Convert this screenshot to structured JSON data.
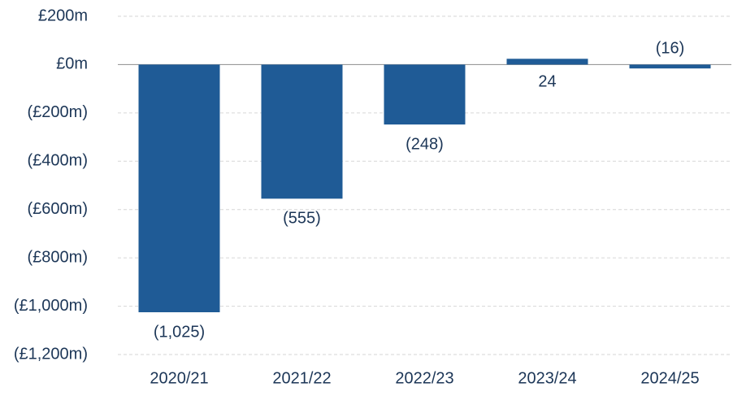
{
  "chart_data": {
    "type": "bar",
    "categories": [
      "2020/21",
      "2021/22",
      "2022/23",
      "2023/24",
      "2024/25"
    ],
    "values": [
      -1025,
      -555,
      -248,
      24,
      -16
    ],
    "value_labels": [
      "(1,025)",
      "(555)",
      "(248)",
      "24",
      "(16)"
    ],
    "color": "#1f5b96",
    "ylim": [
      -1200,
      200
    ],
    "yticks": [
      {
        "value": 200,
        "label": "£200m"
      },
      {
        "value": 0,
        "label": "£0m"
      },
      {
        "value": -200,
        "label": "(£200m)"
      },
      {
        "value": -400,
        "label": "(£400m)"
      },
      {
        "value": -600,
        "label": "(£600m)"
      },
      {
        "value": -800,
        "label": "(£800m)"
      },
      {
        "value": -1000,
        "label": "(£1,000m)"
      },
      {
        "value": -1200,
        "label": "(£1,200m)"
      }
    ],
    "grid": true
  }
}
